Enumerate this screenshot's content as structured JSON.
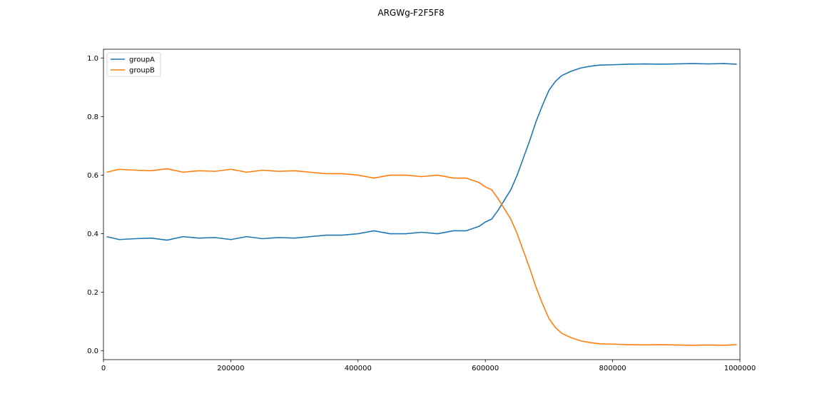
{
  "chart_data": {
    "type": "line",
    "title": "ARGWg-F2F5F8",
    "xlabel": "",
    "ylabel": "",
    "xlim": [
      0,
      1000000
    ],
    "ylim": [
      -0.03,
      1.03
    ],
    "x_ticks": [
      0,
      200000,
      400000,
      600000,
      800000,
      1000000
    ],
    "x_tick_labels": [
      "0",
      "200000",
      "400000",
      "600000",
      "800000",
      "1000000"
    ],
    "y_ticks": [
      0.0,
      0.2,
      0.4,
      0.6,
      0.8,
      1.0
    ],
    "y_tick_labels": [
      "0.0",
      "0.2",
      "0.4",
      "0.6",
      "0.8",
      "1.0"
    ],
    "grid": false,
    "legend_position": "top-left",
    "x": [
      5000,
      25000,
      50000,
      75000,
      100000,
      125000,
      150000,
      175000,
      200000,
      225000,
      250000,
      275000,
      300000,
      325000,
      350000,
      375000,
      400000,
      425000,
      450000,
      475000,
      500000,
      525000,
      550000,
      570000,
      590000,
      600000,
      610000,
      620000,
      630000,
      640000,
      650000,
      660000,
      670000,
      680000,
      690000,
      700000,
      710000,
      720000,
      735000,
      750000,
      765000,
      780000,
      800000,
      825000,
      850000,
      875000,
      900000,
      925000,
      950000,
      975000,
      995000
    ],
    "series": [
      {
        "name": "groupA",
        "color": "#1f77b4",
        "values": [
          0.39,
          0.38,
          0.383,
          0.385,
          0.378,
          0.39,
          0.385,
          0.387,
          0.38,
          0.39,
          0.383,
          0.387,
          0.385,
          0.39,
          0.395,
          0.395,
          0.4,
          0.41,
          0.4,
          0.4,
          0.405,
          0.4,
          0.41,
          0.41,
          0.425,
          0.44,
          0.45,
          0.48,
          0.515,
          0.55,
          0.6,
          0.66,
          0.72,
          0.785,
          0.84,
          0.89,
          0.92,
          0.94,
          0.955,
          0.966,
          0.972,
          0.976,
          0.977,
          0.979,
          0.98,
          0.979,
          0.98,
          0.981,
          0.98,
          0.981,
          0.979
        ]
      },
      {
        "name": "groupB",
        "color": "#ff7f0e",
        "values": [
          0.61,
          0.62,
          0.617,
          0.615,
          0.622,
          0.61,
          0.615,
          0.613,
          0.62,
          0.61,
          0.617,
          0.613,
          0.615,
          0.61,
          0.605,
          0.605,
          0.6,
          0.59,
          0.6,
          0.6,
          0.595,
          0.6,
          0.59,
          0.59,
          0.575,
          0.56,
          0.55,
          0.52,
          0.485,
          0.45,
          0.4,
          0.34,
          0.28,
          0.215,
          0.16,
          0.11,
          0.08,
          0.06,
          0.045,
          0.034,
          0.028,
          0.024,
          0.023,
          0.021,
          0.02,
          0.021,
          0.02,
          0.019,
          0.02,
          0.019,
          0.021
        ]
      }
    ]
  }
}
